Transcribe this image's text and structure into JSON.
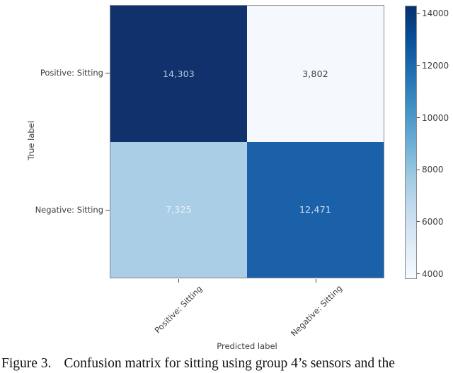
{
  "caption": {
    "prefix": "Figure 3.",
    "text": "Confusion matrix for sitting using group 4’s sensors and the"
  },
  "chart_data": {
    "type": "heatmap",
    "title": "",
    "xlabel": "Predicted label",
    "ylabel": "True label",
    "x_tick_labels": [
      "Positive: Sitting",
      "Negative: Sitting"
    ],
    "y_tick_labels": [
      "Positive: Sitting",
      "Negative: Sitting"
    ],
    "matrix": [
      [
        14303,
        3802
      ],
      [
        7325,
        12471
      ]
    ],
    "colormap": "Blues",
    "cells": [
      {
        "row": "Positive: Sitting",
        "col": "Positive: Sitting",
        "value": 14303,
        "label": "14,303",
        "bg": "#10316c",
        "fg": "#b9c9de"
      },
      {
        "row": "Positive: Sitting",
        "col": "Negative: Sitting",
        "value": 3802,
        "label": "3,802",
        "bg": "#f5f9fd",
        "fg": "#3d4249"
      },
      {
        "row": "Negative: Sitting",
        "col": "Positive: Sitting",
        "value": 7325,
        "label": "7,325",
        "bg": "#a9cee6",
        "fg": "#ebf2f8"
      },
      {
        "row": "Negative: Sitting",
        "col": "Negative: Sitting",
        "value": 12471,
        "label": "12,471",
        "bg": "#1a61aa",
        "fg": "#d5e2f0"
      }
    ],
    "colorbar": {
      "vmin": 3802,
      "vmax": 14303,
      "ticks": [
        {
          "value": 14000,
          "label": "14000"
        },
        {
          "value": 12000,
          "label": "12000"
        },
        {
          "value": 10000,
          "label": "10000"
        },
        {
          "value": 8000,
          "label": "8000"
        },
        {
          "value": 6000,
          "label": "6000"
        },
        {
          "value": 4000,
          "label": "4000"
        }
      ],
      "gradient_top_to_bottom": [
        "#08306b",
        "#08519c",
        "#2171b5",
        "#4292c6",
        "#6baed6",
        "#9ecae1",
        "#c6dbef",
        "#deebf7",
        "#f7fbff"
      ]
    }
  }
}
